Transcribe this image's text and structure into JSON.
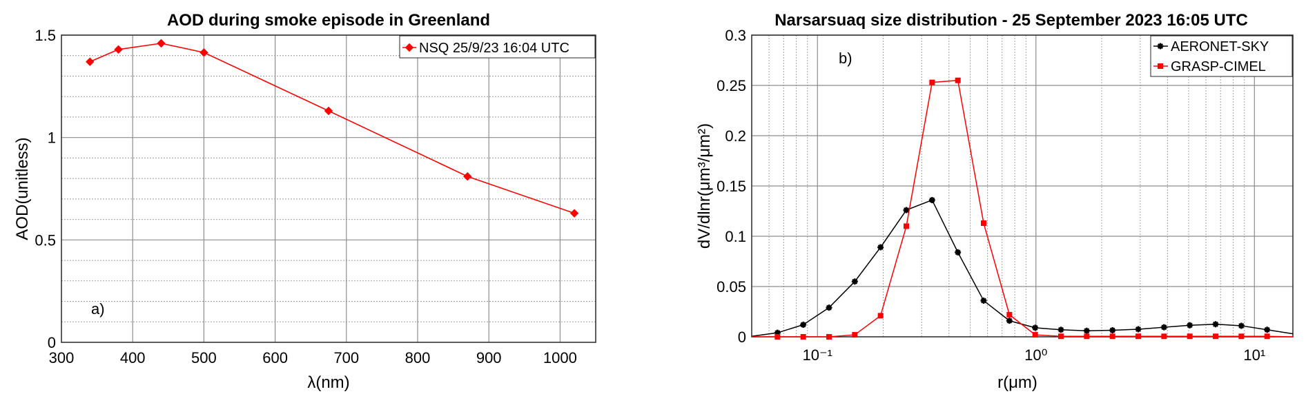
{
  "chart_data": [
    {
      "type": "line",
      "title": "AOD during smoke episode in  Greenland",
      "xlabel": "λ(nm)",
      "ylabel": "AOD(unitless)",
      "xlim": [
        300,
        1050
      ],
      "ylim": [
        0,
        1.5
      ],
      "xticks": [
        300,
        400,
        500,
        600,
        700,
        800,
        900,
        1000
      ],
      "yticks": [
        0,
        0.5,
        1,
        1.5
      ],
      "ytick_labels": [
        "0",
        "0.5",
        "1",
        "1.5"
      ],
      "grid": true,
      "y_minor_grid": [
        0.1,
        0.2,
        0.3,
        0.4,
        0.6,
        0.7,
        0.8,
        0.9,
        1.1,
        1.2,
        1.3,
        1.4
      ],
      "legend_position": "top-right",
      "annotation": "a)",
      "series": [
        {
          "name": "NSQ 25/9/23 16:04 UTC",
          "color": "#ff0000",
          "marker": "diamond",
          "x": [
            340,
            380,
            440,
            500,
            675,
            870,
            1020
          ],
          "y": [
            1.37,
            1.43,
            1.46,
            1.415,
            1.13,
            0.81,
            0.63
          ]
        }
      ]
    },
    {
      "type": "line",
      "title": "Narsarsuaq  size distribution - 25 September 2023 16:05 UTC",
      "xlabel": "r(μm)",
      "ylabel": "dV/dlnr(μm³/μm²)",
      "xscale": "log",
      "xlim": [
        0.05,
        15
      ],
      "ylim": [
        0,
        0.3
      ],
      "xticks": [
        0.1,
        1,
        10
      ],
      "xtick_labels": [
        "10⁻¹",
        "10⁰",
        "10¹"
      ],
      "yticks": [
        0,
        0.05,
        0.1,
        0.15,
        0.2,
        0.25,
        0.3
      ],
      "ytick_labels": [
        "0",
        "0.05",
        "0.1",
        "0.15",
        "0.2",
        "0.25",
        "0.3"
      ],
      "grid": true,
      "x_minor_grid": true,
      "legend_position": "top-right",
      "annotation": "b)",
      "series": [
        {
          "name": "AERONET-SKY",
          "color": "#000000",
          "marker": "star",
          "x": [
            0.05,
            0.065604,
            0.086077,
            0.112939,
            0.148184,
            0.194429,
            0.255105,
            0.334716,
            0.439173,
            0.576227,
            0.756052,
            0.991996,
            1.301571,
            1.707757,
            2.240702,
            2.939966,
            3.857452,
            5.06126,
            6.640745,
            8.713145,
            11.432287,
            15.0
          ],
          "y": [
            0.0005,
            0.004,
            0.012,
            0.029,
            0.055,
            0.089,
            0.126,
            0.136,
            0.084,
            0.036,
            0.016,
            0.009,
            0.007,
            0.006,
            0.0065,
            0.0075,
            0.0095,
            0.0115,
            0.0125,
            0.011,
            0.007,
            0.003
          ]
        },
        {
          "name": "GRASP-CIMEL",
          "color": "#ff0000",
          "marker": "square",
          "x": [
            0.05,
            0.065604,
            0.086077,
            0.112939,
            0.148184,
            0.194429,
            0.255105,
            0.334716,
            0.439173,
            0.576227,
            0.756052,
            0.991996,
            1.301571,
            1.707757,
            2.240702,
            2.939966,
            3.857452,
            5.06126,
            6.640745,
            8.713145,
            11.432287,
            15.0
          ],
          "y": [
            0,
            0,
            0,
            0,
            0.002,
            0.021,
            0.11,
            0.253,
            0.255,
            0.113,
            0.022,
            0.002,
            0.0005,
            0.0005,
            0.0005,
            0.0005,
            0.0005,
            0.0005,
            0.0005,
            0.0005,
            0.0005,
            0
          ]
        }
      ]
    }
  ]
}
